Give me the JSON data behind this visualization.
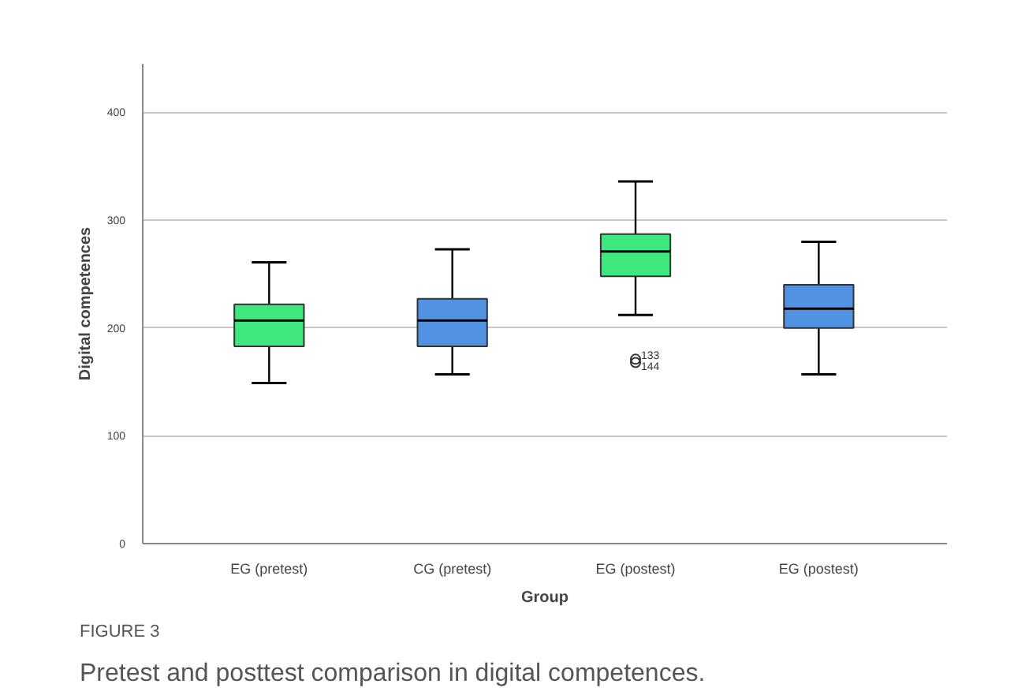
{
  "chart_data": {
    "type": "box",
    "xlabel": "Group",
    "ylabel": "Digital competences",
    "categories": [
      "EG (pretest)",
      "CG (pretest)",
      "EG (postest)",
      "EG (postest)"
    ],
    "colors": [
      "#3fe87c",
      "#5292e2",
      "#3fe87c",
      "#5292e2"
    ],
    "boxes": [
      {
        "low": 149,
        "q1": 183,
        "median": 207,
        "q3": 222,
        "high": 261
      },
      {
        "low": 157,
        "q1": 183,
        "median": 207,
        "q3": 227,
        "high": 273
      },
      {
        "low": 212,
        "q1": 248,
        "median": 271,
        "q3": 287,
        "high": 336,
        "outliers": [
          171,
          168
        ]
      },
      {
        "low": 157,
        "q1": 200,
        "median": 218,
        "q3": 240,
        "high": 280
      }
    ],
    "ylim": [
      0,
      445
    ],
    "yticks": [
      0,
      100,
      200,
      300,
      400
    ],
    "grid": "y",
    "annotations": [
      "133",
      "144",
      "FIGURE 3",
      "Pretest and posttest comparison in digital competences."
    ]
  }
}
